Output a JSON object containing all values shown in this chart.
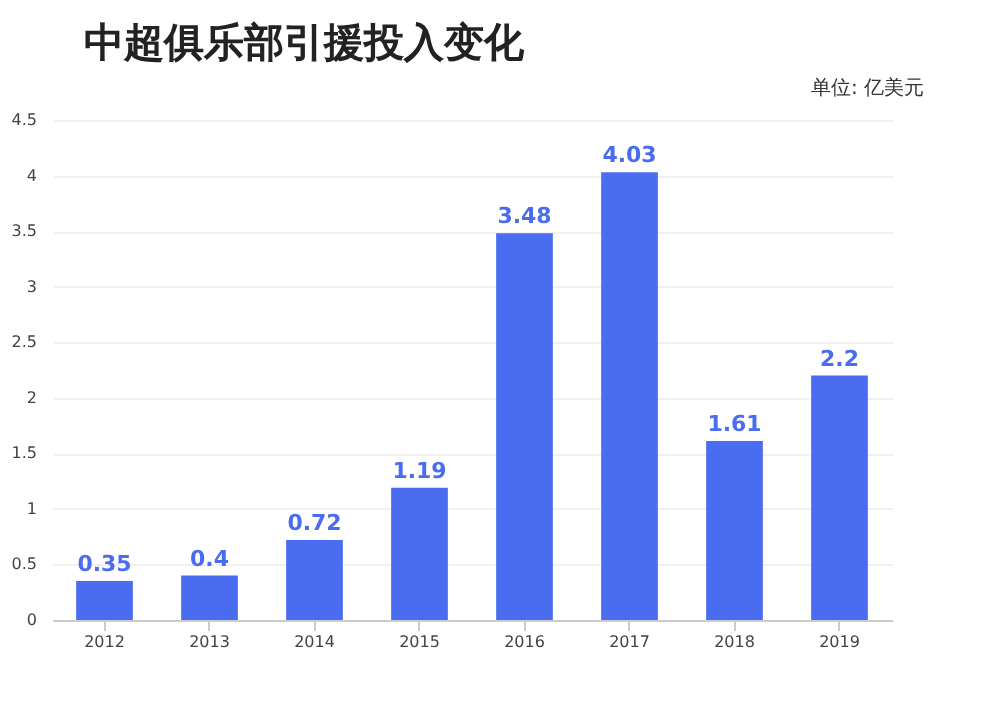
{
  "chart_data": {
    "type": "bar",
    "title": "中超俱乐部引援投入变化",
    "annotations": [
      "单位: 亿美元"
    ],
    "categories": [
      "2012",
      "2013",
      "2014",
      "2015",
      "2016",
      "2017",
      "2018",
      "2019"
    ],
    "values": [
      0.35,
      0.4,
      0.72,
      1.19,
      3.48,
      4.03,
      1.61,
      2.2
    ],
    "color": "#4a6cf0",
    "ylim": [
      0,
      4.5
    ],
    "yticks": [
      0,
      0.5,
      1,
      1.5,
      2,
      2.5,
      3,
      3.5,
      4,
      4.5
    ],
    "grid": "y",
    "data_labels": true
  }
}
